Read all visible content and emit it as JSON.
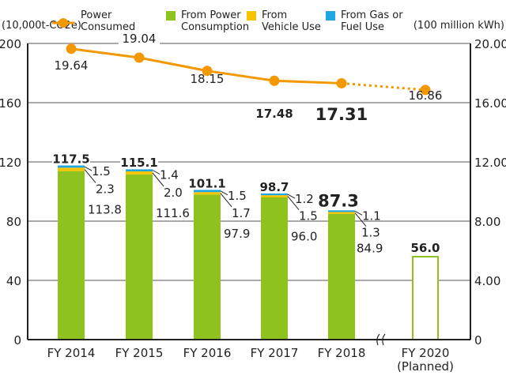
{
  "chart_data": {
    "type": "bar",
    "categories": [
      "FY 2014",
      "FY 2015",
      "FY 2016",
      "FY 2017",
      "FY 2018",
      "FY 2020"
    ],
    "category_sublabels": [
      "",
      "",
      "",
      "",
      "",
      "(Planned)"
    ],
    "left_axis": {
      "unit": "(10,000t-CO2e)",
      "ylim": [
        0,
        200
      ],
      "ticks": [
        "0",
        "40",
        "80",
        "120",
        "160",
        "200"
      ]
    },
    "right_axis": {
      "unit": "(100 million kWh)",
      "ylim": [
        0,
        20
      ],
      "ticks": [
        "0",
        "4.00",
        "8.00",
        "12.00",
        "16.00",
        "20.00"
      ]
    },
    "grid": true,
    "legend_position": "top",
    "series": [
      {
        "name": "From Power Consumption",
        "color": "#8dc21f",
        "values": [
          113.8,
          111.6,
          97.9,
          96.0,
          84.9,
          null
        ],
        "labels": [
          "113.8",
          "111.6",
          "97.9",
          "96.0",
          "84.9",
          ""
        ]
      },
      {
        "name": "From Vehicle Use",
        "color": "#f8c300",
        "values": [
          2.3,
          2.0,
          1.7,
          1.5,
          1.3,
          null
        ],
        "labels": [
          "2.3",
          "2.0",
          "1.7",
          "1.5",
          "1.3",
          ""
        ]
      },
      {
        "name": "From Gas or Fuel Use",
        "color": "#1ea7e1",
        "values": [
          1.5,
          1.4,
          1.5,
          1.2,
          1.1,
          null
        ],
        "labels": [
          "1.5",
          "1.4",
          "1.5",
          "1.2",
          "1.1",
          ""
        ]
      }
    ],
    "totals": [
      117.5,
      115.1,
      101.1,
      98.7,
      87.3,
      56.0
    ],
    "total_labels": [
      "117.5",
      "115.1",
      "101.1",
      "98.7",
      "87.3",
      "56.0"
    ],
    "planned_total_style": "outline",
    "line": {
      "name": "Power Consumed",
      "name_lines": [
        "Power",
        "Consumed"
      ],
      "color": "#f39800",
      "axis": "right",
      "values": [
        19.64,
        19.04,
        18.15,
        17.48,
        17.31,
        16.86
      ],
      "labels": [
        "19.64",
        "19.04",
        "18.15",
        "17.48",
        "17.31",
        "16.86"
      ],
      "dotted_last_segment": true
    },
    "legend": [
      {
        "lines": [
          "Power",
          "Consumed"
        ],
        "color": "#f39800",
        "marker": "line-dot"
      },
      {
        "lines": [
          "From Power",
          "Consumption"
        ],
        "color": "#8dc21f",
        "marker": "square"
      },
      {
        "lines": [
          "From",
          "Vehicle Use"
        ],
        "color": "#f8c300",
        "marker": "square"
      },
      {
        "lines": [
          "From Gas or",
          "Fuel Use"
        ],
        "color": "#1ea7e1",
        "marker": "square"
      }
    ],
    "axis_break_between": [
      "FY 2018",
      "FY 2020"
    ]
  }
}
